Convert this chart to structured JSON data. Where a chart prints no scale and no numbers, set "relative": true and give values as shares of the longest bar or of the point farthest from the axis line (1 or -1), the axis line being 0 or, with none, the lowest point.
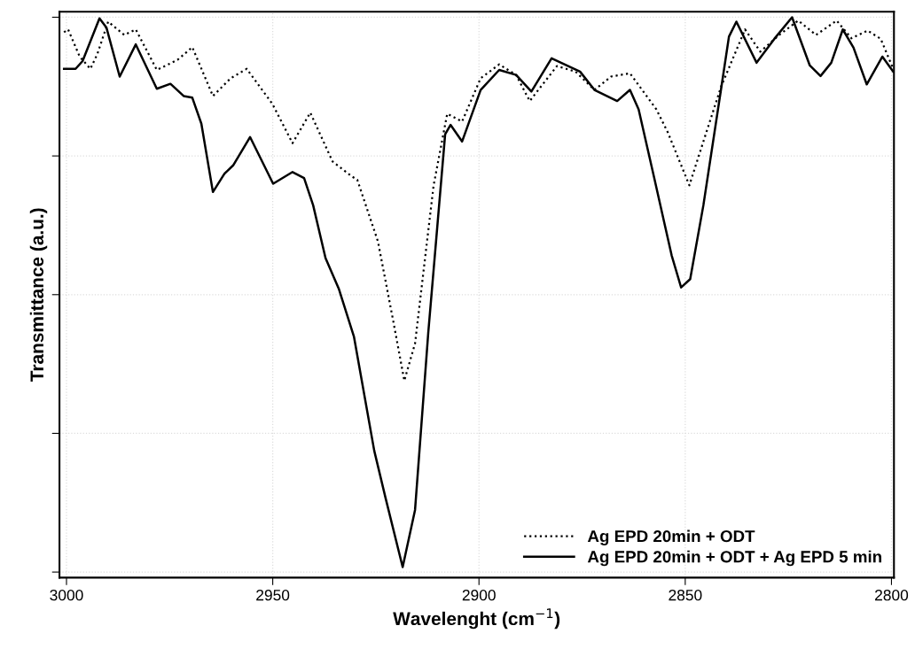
{
  "chart_data": {
    "type": "line",
    "xlabel": "Wavelenght (cm$^{−1}$)",
    "ylabel": "Transmittance (a.u.)",
    "relative": true,
    "xlim": [
      3001.7,
      2799.4
    ],
    "xticks": [
      3000,
      2950,
      2900,
      2850,
      2800
    ],
    "tick_labels": "x",
    "grid": true,
    "legend": "bottom right",
    "marker": "none",
    "series": [
      {
        "name": "Ag EPD 20min + ODT",
        "color": "#000000",
        "line_style": "dotted",
        "x": [
          3000.6,
          2999.6,
          2996.8,
          2994.2,
          2992.5,
          2989.9,
          2986.0,
          2983.2,
          2978.1,
          2973.1,
          2969.5,
          2964.5,
          2960.2,
          2956.3,
          2950.1,
          2945.2,
          2940.9,
          2935.5,
          2930.8,
          2929.5,
          2924.5,
          2920.9,
          2918.1,
          2915.5,
          2911.0,
          2907.7,
          2904.1,
          2899.6,
          2895.1,
          2891.0,
          2887.7,
          2881.1,
          2876.6,
          2872.0,
          2868.0,
          2863.4,
          2857.0,
          2854.2,
          2849.0,
          2845.6,
          2841.3,
          2835.5,
          2831.8,
          2826.9,
          2822.6,
          2818.3,
          2813.3,
          2809.7,
          2805.8,
          2802.6,
          2799.6
        ],
        "values": [
          0.973,
          0.978,
          0.929,
          0.907,
          0.934,
          0.992,
          0.968,
          0.978,
          0.905,
          0.923,
          0.946,
          0.858,
          0.89,
          0.907,
          0.844,
          0.773,
          0.828,
          0.74,
          0.713,
          0.707,
          0.596,
          0.457,
          0.345,
          0.412,
          0.697,
          0.826,
          0.812,
          0.89,
          0.915,
          0.896,
          0.849,
          0.912,
          0.902,
          0.869,
          0.893,
          0.899,
          0.834,
          0.792,
          0.697,
          0.776,
          0.875,
          0.978,
          0.938,
          0.97,
          0.994,
          0.968,
          0.994,
          0.962,
          0.976,
          0.961,
          0.907
        ]
      },
      {
        "name": "Ag EPD 20min + ODT + Ag EPD 5 min",
        "color": "#000000",
        "line_style": "solid",
        "x": [
          3000.6,
          2997.8,
          2996.1,
          2992.0,
          2990.3,
          2987.1,
          2983.2,
          2978.1,
          2974.8,
          2971.6,
          2969.5,
          2967.3,
          2964.5,
          2961.7,
          2959.6,
          2955.5,
          2949.9,
          2945.2,
          2942.4,
          2940.2,
          2937.2,
          2934.0,
          2930.3,
          2925.4,
          2922.6,
          2918.5,
          2915.5,
          2912.3,
          2908.2,
          2906.9,
          2904.1,
          2899.6,
          2895.1,
          2891.0,
          2887.3,
          2882.4,
          2875.5,
          2872.0,
          2866.5,
          2863.4,
          2861.3,
          2857.6,
          2853.3,
          2851.0,
          2848.8,
          2845.6,
          2841.3,
          2839.4,
          2837.6,
          2832.7,
          2828.4,
          2824.1,
          2819.8,
          2817.2,
          2814.6,
          2811.8,
          2809.2,
          2806.0,
          2802.2,
          2799.6
        ],
        "values": [
          0.907,
          0.907,
          0.921,
          0.998,
          0.981,
          0.893,
          0.951,
          0.871,
          0.88,
          0.858,
          0.855,
          0.808,
          0.685,
          0.718,
          0.733,
          0.784,
          0.7,
          0.721,
          0.71,
          0.661,
          0.566,
          0.511,
          0.424,
          0.219,
          0.132,
          0.009,
          0.112,
          0.431,
          0.789,
          0.806,
          0.776,
          0.869,
          0.905,
          0.896,
          0.866,
          0.926,
          0.902,
          0.869,
          0.849,
          0.869,
          0.834,
          0.713,
          0.571,
          0.513,
          0.528,
          0.661,
          0.871,
          0.965,
          0.992,
          0.918,
          0.961,
          1.0,
          0.913,
          0.894,
          0.918,
          0.978,
          0.945,
          0.879,
          0.929,
          0.902
        ]
      }
    ]
  }
}
